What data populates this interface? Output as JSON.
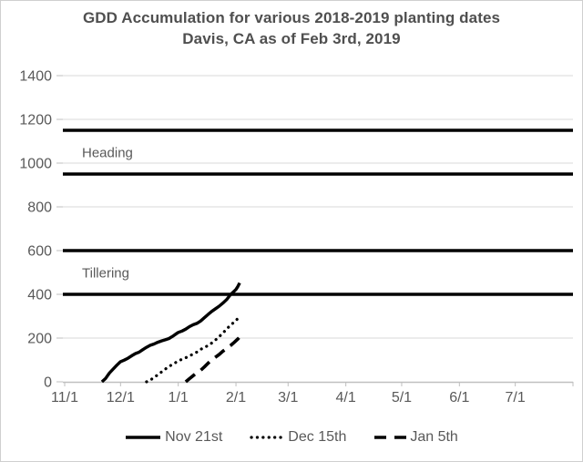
{
  "window": {
    "background": "#ffffff",
    "border_color": "#cfcfcf"
  },
  "chart_data": {
    "type": "line",
    "title": "GDD Accumulation for various 2018-2019 planting dates",
    "subtitle": "Davis, CA as of Feb 3rd, 2019",
    "title_color": "#4f4f4f",
    "axis_label_color": "#595959",
    "gridline_color": "#d9d9d9",
    "axis_line_color": "#bfbfbf",
    "series_color": "#000000",
    "reference_line_color": "#000000",
    "grid": "horizontal",
    "legend_position": "bottom",
    "xlabel": "",
    "ylabel": "",
    "ylim": [
      0,
      1400
    ],
    "y_ticks": [
      0,
      200,
      400,
      600,
      800,
      1000,
      1200,
      1400
    ],
    "x_tick_labels": [
      "11/1",
      "12/1",
      "1/1",
      "2/1",
      "3/1",
      "4/1",
      "5/1",
      "6/1",
      "7/1"
    ],
    "x_tick_days": [
      0,
      30,
      61,
      92,
      120,
      151,
      181,
      212,
      242
    ],
    "x_total_days": 273,
    "reference_lines": [
      {
        "value": 1150
      },
      {
        "value": 950
      },
      {
        "value": 600
      },
      {
        "value": 400
      }
    ],
    "zone_labels": [
      {
        "text": "Heading",
        "between": [
          1150,
          950
        ]
      },
      {
        "text": "Tillering",
        "between": [
          600,
          400
        ]
      }
    ],
    "series": [
      {
        "name": "Nov 21st",
        "style": "solid",
        "planting_date": "Nov 21",
        "points": [
          [
            20,
            0
          ],
          [
            22,
            16
          ],
          [
            24,
            40
          ],
          [
            26,
            58
          ],
          [
            28,
            76
          ],
          [
            30,
            92
          ],
          [
            32,
            99
          ],
          [
            34,
            108
          ],
          [
            36,
            119
          ],
          [
            38,
            129
          ],
          [
            40,
            136
          ],
          [
            42,
            147
          ],
          [
            44,
            158
          ],
          [
            46,
            167
          ],
          [
            48,
            173
          ],
          [
            50,
            181
          ],
          [
            52,
            187
          ],
          [
            54,
            192
          ],
          [
            56,
            198
          ],
          [
            58,
            208
          ],
          [
            60,
            220
          ],
          [
            61,
            226
          ],
          [
            63,
            232
          ],
          [
            65,
            241
          ],
          [
            67,
            252
          ],
          [
            69,
            261
          ],
          [
            71,
            267
          ],
          [
            73,
            278
          ],
          [
            75,
            293
          ],
          [
            77,
            308
          ],
          [
            79,
            322
          ],
          [
            81,
            334
          ],
          [
            83,
            346
          ],
          [
            85,
            360
          ],
          [
            87,
            376
          ],
          [
            89,
            398
          ],
          [
            91,
            414
          ],
          [
            92,
            422
          ],
          [
            93,
            436
          ],
          [
            94,
            452
          ]
        ]
      },
      {
        "name": "Dec 15th",
        "style": "dotted",
        "planting_date": "Dec 15",
        "points": [
          [
            44,
            0
          ],
          [
            46,
            8
          ],
          [
            48,
            20
          ],
          [
            50,
            32
          ],
          [
            52,
            45
          ],
          [
            54,
            58
          ],
          [
            56,
            70
          ],
          [
            58,
            80
          ],
          [
            60,
            90
          ],
          [
            61,
            96
          ],
          [
            63,
            103
          ],
          [
            65,
            110
          ],
          [
            67,
            118
          ],
          [
            69,
            127
          ],
          [
            71,
            136
          ],
          [
            73,
            148
          ],
          [
            75,
            158
          ],
          [
            77,
            165
          ],
          [
            78,
            170
          ],
          [
            80,
            185
          ],
          [
            82,
            198
          ],
          [
            84,
            215
          ],
          [
            86,
            232
          ],
          [
            88,
            250
          ],
          [
            90,
            266
          ],
          [
            92,
            280
          ],
          [
            93,
            290
          ],
          [
            94,
            298
          ]
        ]
      },
      {
        "name": "Jan 5th",
        "style": "dashed",
        "planting_date": "Jan 5",
        "points": [
          [
            65,
            0
          ],
          [
            67,
            14
          ],
          [
            69,
            28
          ],
          [
            71,
            42
          ],
          [
            73,
            52
          ],
          [
            75,
            68
          ],
          [
            77,
            85
          ],
          [
            79,
            100
          ],
          [
            81,
            113
          ],
          [
            83,
            125
          ],
          [
            85,
            140
          ],
          [
            87,
            152
          ],
          [
            89,
            165
          ],
          [
            91,
            180
          ],
          [
            93,
            196
          ],
          [
            94,
            205
          ]
        ]
      }
    ]
  }
}
